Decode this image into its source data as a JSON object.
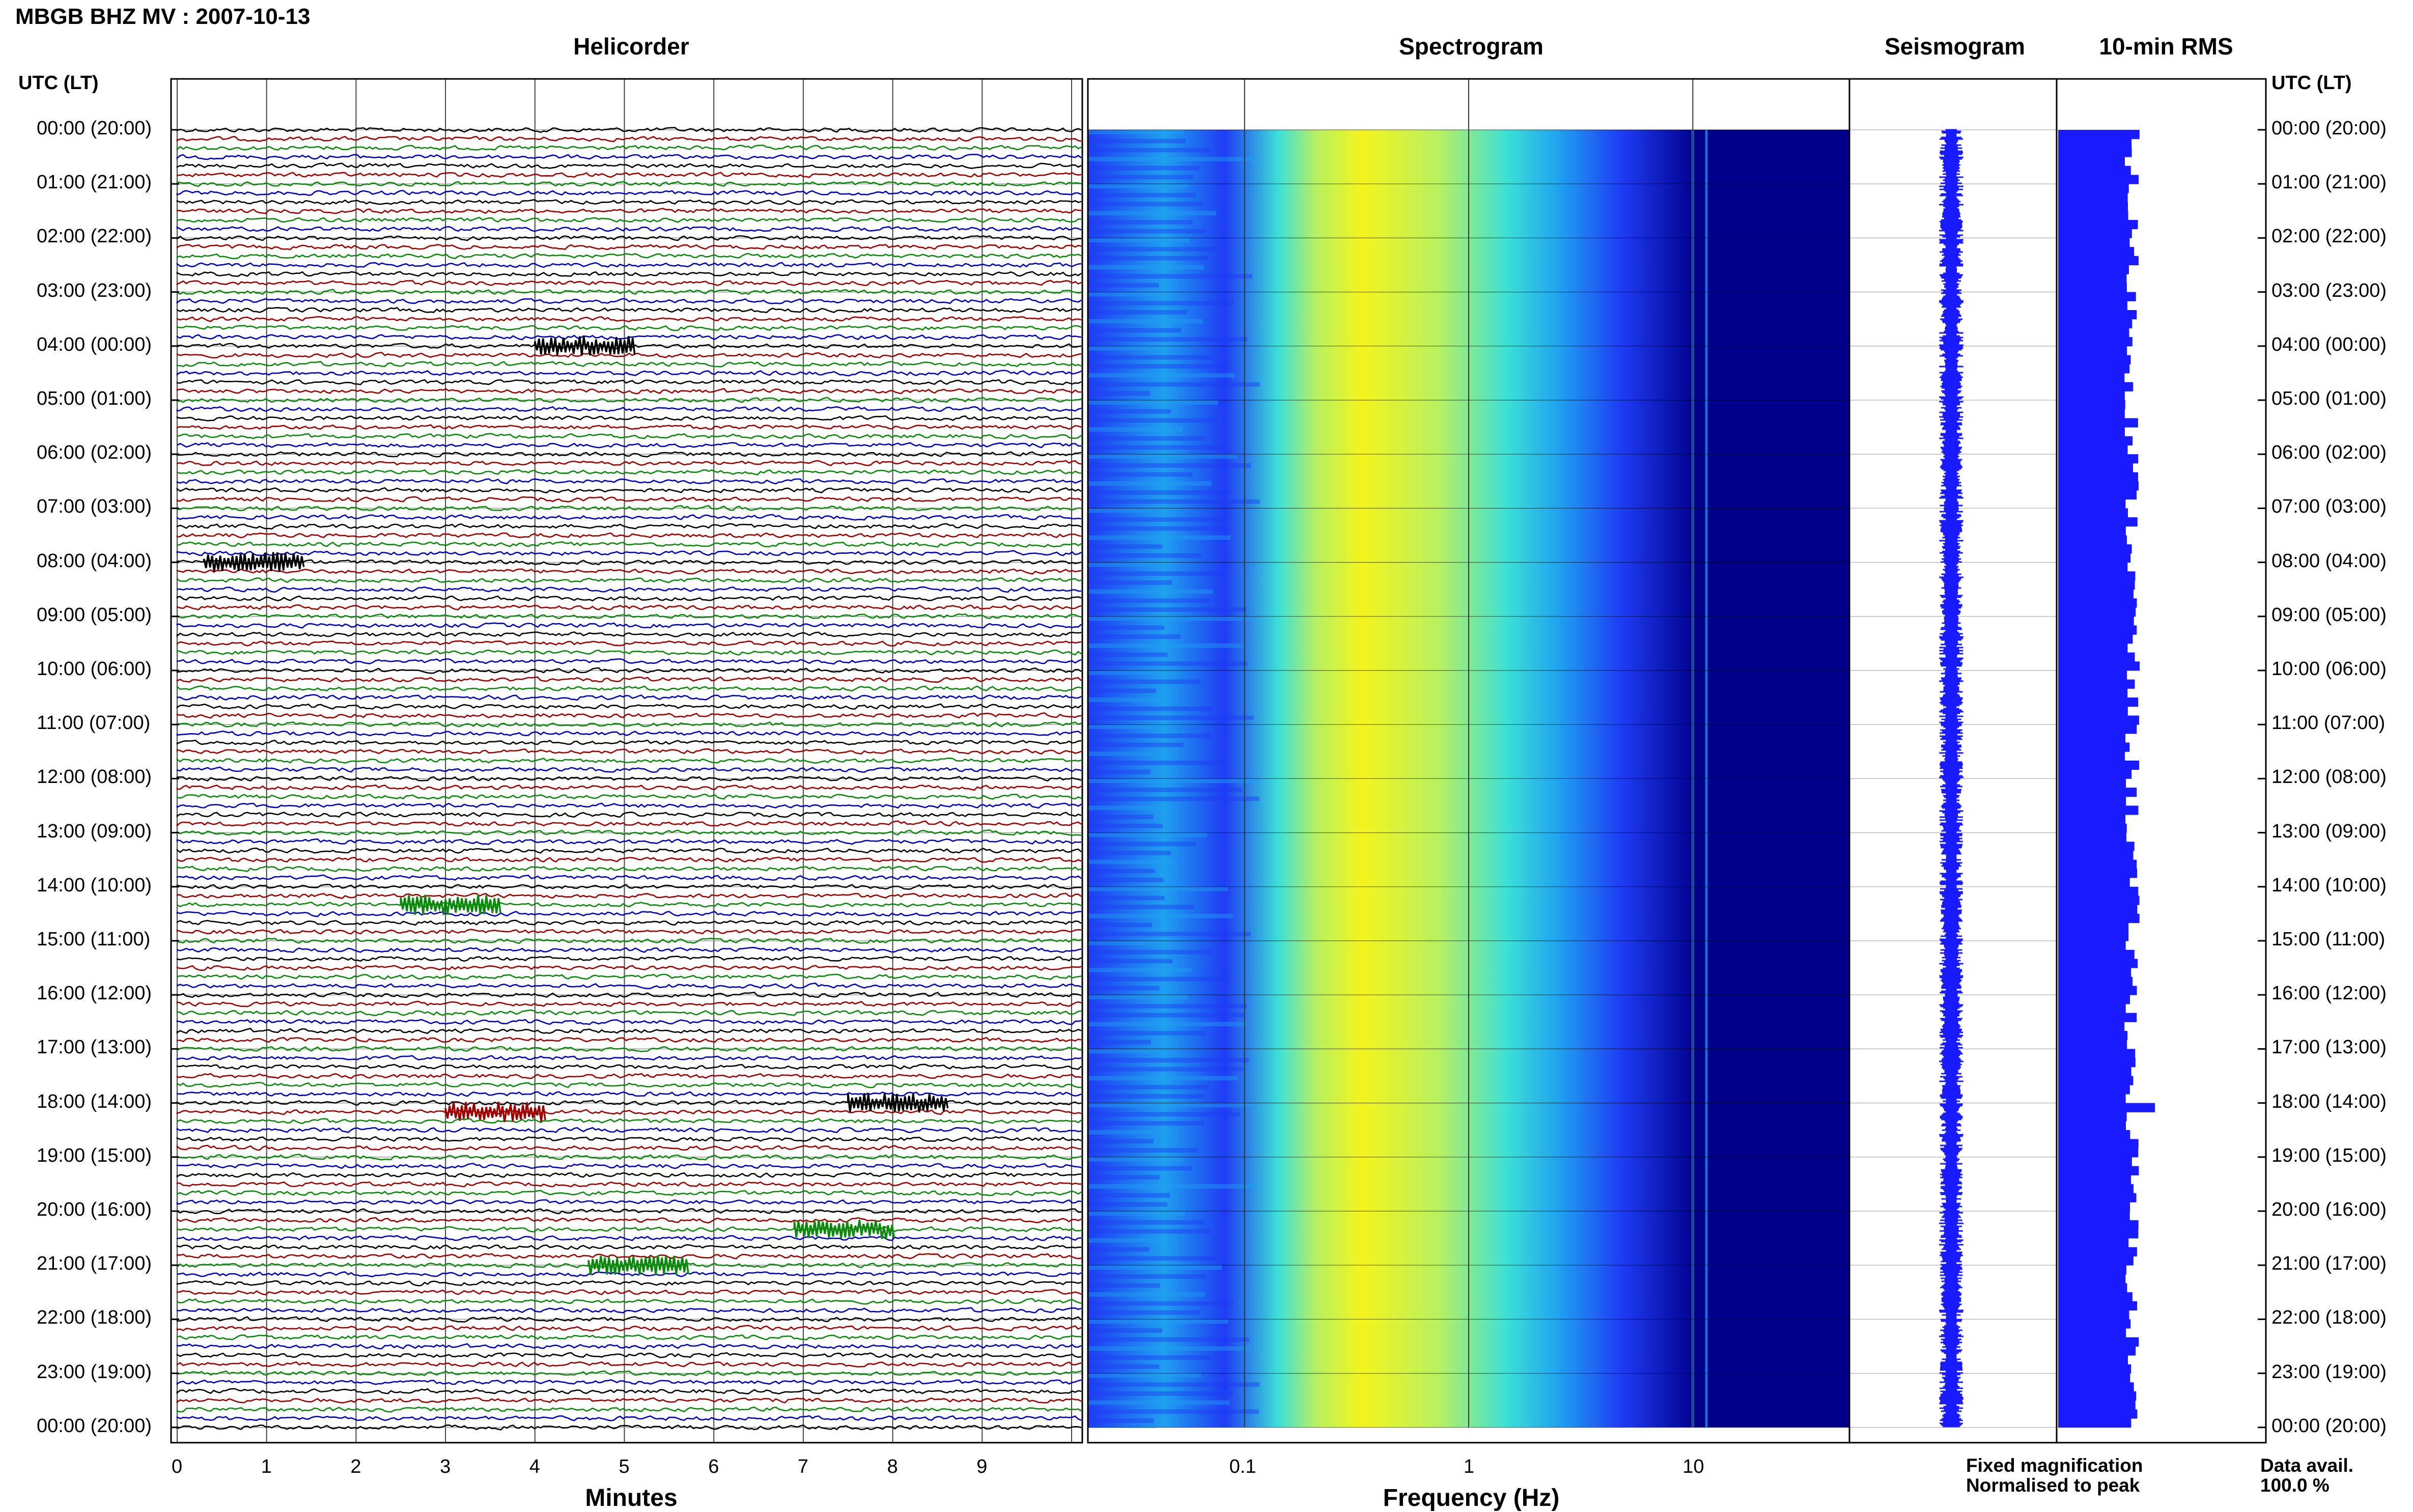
{
  "title": "MBGB BHZ MV : 2007-10-13",
  "panels": {
    "helicorder": "Helicorder",
    "spectrogram": "Spectrogram",
    "seismogram": "Seismogram",
    "rms": "10-min RMS"
  },
  "time_axis_label": "UTC (LT)",
  "hour_labels": [
    "00:00 (20:00)",
    "01:00 (21:00)",
    "02:00 (22:00)",
    "03:00 (23:00)",
    "04:00 (00:00)",
    "05:00 (01:00)",
    "06:00 (02:00)",
    "07:00 (03:00)",
    "08:00 (04:00)",
    "09:00 (05:00)",
    "10:00 (06:00)",
    "11:00 (07:00)",
    "12:00 (08:00)",
    "13:00 (09:00)",
    "14:00 (10:00)",
    "15:00 (11:00)",
    "16:00 (12:00)",
    "17:00 (13:00)",
    "18:00 (14:00)",
    "19:00 (15:00)",
    "20:00 (16:00)",
    "21:00 (17:00)",
    "22:00 (18:00)",
    "23:00 (19:00)",
    "00:00 (20:00)"
  ],
  "helicorder_xlabel": "Minutes",
  "minute_ticks": [
    "0",
    "1",
    "2",
    "3",
    "4",
    "5",
    "6",
    "7",
    "8",
    "9"
  ],
  "spectrogram_xlabel": "Frequency (Hz)",
  "freq_ticks": [
    "0.1",
    "1",
    "10"
  ],
  "legend": {
    "fixed": "Fixed magnification",
    "normalised": "Normalised to peak",
    "fixed_color": "#1a1aff",
    "normalised_color": "#ff1a1a"
  },
  "data_avail": {
    "label": "Data avail.",
    "value": "100.0 %"
  },
  "chart_data": {
    "type": "heatmap",
    "station": "MBGB BHZ MV",
    "date": "2007-10-13",
    "helicorder": {
      "minutes_range": [
        0,
        10
      ],
      "rows_per_hour": 6,
      "trace_colors": [
        "#000000",
        "#a00000",
        "#0a8a0a",
        "#0000c8"
      ],
      "events": [
        {
          "utc": "04:00",
          "minute": 4.0
        },
        {
          "utc": "08:00",
          "minute": 0.3
        },
        {
          "utc": "14:20",
          "minute": 2.5
        },
        {
          "utc": "18:00",
          "minute": 7.5
        },
        {
          "utc": "18:10",
          "minute": 3.0
        },
        {
          "utc": "20:20",
          "minute": 6.9
        },
        {
          "utc": "21:00",
          "minute": 4.6
        }
      ]
    },
    "spectrogram": {
      "frequency_scale": "log",
      "frequency_range_hz": [
        0.02,
        50
      ],
      "colormap": [
        "#00008b",
        "#1f3cf5",
        "#1fa0f0",
        "#3ce0d6",
        "#b8f060",
        "#f4f41c"
      ],
      "peak_band_hz": [
        0.2,
        0.7
      ],
      "spectral_lines_hz": [
        10,
        11.5
      ]
    },
    "rms": {
      "interval_minutes": 10,
      "peak_utc": "18:00"
    }
  }
}
